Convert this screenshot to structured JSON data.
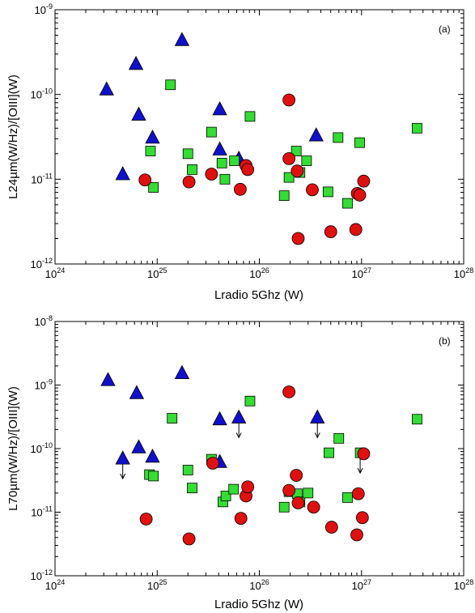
{
  "chart_data": [
    {
      "type": "scatter",
      "panel_label": "(a)",
      "xlabel": "Lradio 5Ghz (W)",
      "ylabel": "L24µm(W/Hz)/[OIII](W)",
      "x_scale": "log",
      "y_scale": "log",
      "xlim": [
        1e+24,
        1e+28
      ],
      "ylim": [
        1e-12,
        1e-09
      ],
      "x_ticks": [
        "10^24",
        "10^25",
        "10^26",
        "10^27",
        "10^28"
      ],
      "y_ticks": [
        "10^-12",
        "10^-11",
        "10^-10",
        "10^-9"
      ],
      "series": [
        {
          "marker": "triangle",
          "color": "#1010cc",
          "points": [
            {
              "x": 3.2e+24,
              "y": 1.15e-10
            },
            {
              "x": 4.6e+24,
              "y": 1.15e-11
            },
            {
              "x": 6.2e+24,
              "y": 2.3e-10
            },
            {
              "x": 6.6e+24,
              "y": 5.8e-11
            },
            {
              "x": 9e+24,
              "y": 3.1e-11
            },
            {
              "x": 1.75e+25,
              "y": 4.4e-10
            },
            {
              "x": 4.1e+25,
              "y": 6.7e-11
            },
            {
              "x": 4.1e+25,
              "y": 2.25e-11
            },
            {
              "x": 6.3e+25,
              "y": 1.75e-11
            },
            {
              "x": 3.6e+26,
              "y": 3.3e-11
            }
          ]
        },
        {
          "marker": "square",
          "color": "#33dd33",
          "points": [
            {
              "x": 8.6e+24,
              "y": 2.15e-11
            },
            {
              "x": 9.2e+24,
              "y": 8e-12
            },
            {
              "x": 1.35e+25,
              "y": 1.3e-10
            },
            {
              "x": 2e+25,
              "y": 2e-11
            },
            {
              "x": 2.2e+25,
              "y": 1.3e-11
            },
            {
              "x": 3.4e+25,
              "y": 3.6e-11
            },
            {
              "x": 4.3e+25,
              "y": 1.55e-11
            },
            {
              "x": 4.6e+25,
              "y": 1e-11
            },
            {
              "x": 5.7e+25,
              "y": 1.65e-11
            },
            {
              "x": 8.1e+25,
              "y": 5.5e-11
            },
            {
              "x": 1.75e+26,
              "y": 6.4e-12
            },
            {
              "x": 1.95e+26,
              "y": 1.05e-11
            },
            {
              "x": 2.3e+26,
              "y": 2.15e-11
            },
            {
              "x": 2.5e+26,
              "y": 1.2e-11
            },
            {
              "x": 2.9e+26,
              "y": 1.65e-11
            },
            {
              "x": 4.7e+26,
              "y": 7.1e-12
            },
            {
              "x": 5.9e+26,
              "y": 3.1e-11
            },
            {
              "x": 7.3e+26,
              "y": 5.2e-12
            },
            {
              "x": 9.6e+26,
              "y": 2.7e-11
            },
            {
              "x": 3.5e+27,
              "y": 4e-11
            }
          ]
        },
        {
          "marker": "circle",
          "color": "#e01010",
          "points": [
            {
              "x": 7.6e+24,
              "y": 9.8e-12
            },
            {
              "x": 2.05e+25,
              "y": 9.3e-12
            },
            {
              "x": 3.4e+25,
              "y": 1.15e-11
            },
            {
              "x": 6.5e+25,
              "y": 7.6e-12
            },
            {
              "x": 7.4e+25,
              "y": 1.45e-11
            },
            {
              "x": 7.7e+25,
              "y": 1.3e-11
            },
            {
              "x": 1.95e+26,
              "y": 8.6e-11
            },
            {
              "x": 1.95e+26,
              "y": 1.75e-11
            },
            {
              "x": 2.35e+26,
              "y": 1.25e-11
            },
            {
              "x": 2.4e+26,
              "y": 2e-12
            },
            {
              "x": 3.3e+26,
              "y": 7.5e-12
            },
            {
              "x": 5e+26,
              "y": 2.4e-12
            },
            {
              "x": 8.8e+26,
              "y": 2.55e-12
            },
            {
              "x": 9.1e+26,
              "y": 6.8e-12
            },
            {
              "x": 9.6e+26,
              "y": 6.5e-12
            },
            {
              "x": 1.05e+27,
              "y": 9.5e-12
            }
          ]
        }
      ]
    },
    {
      "type": "scatter",
      "panel_label": "(b)",
      "xlabel": "Lradio 5Ghz (W)",
      "ylabel": "L70µm(W/Hz)/[OIII](W)",
      "x_scale": "log",
      "y_scale": "log",
      "xlim": [
        1e+24,
        1e+28
      ],
      "ylim": [
        1e-12,
        1e-08
      ],
      "x_ticks": [
        "10^24",
        "10^25",
        "10^26",
        "10^27",
        "10^28"
      ],
      "y_ticks": [
        "10^-12",
        "10^-11",
        "10^-10",
        "10^-9",
        "10^-8"
      ],
      "series": [
        {
          "marker": "triangle",
          "color": "#1010cc",
          "points": [
            {
              "x": 3.3e+24,
              "y": 1.2e-09
            },
            {
              "x": 4.6e+24,
              "y": 7e-11,
              "upper_limit": true
            },
            {
              "x": 6.3e+24,
              "y": 7.5e-10
            },
            {
              "x": 6.6e+24,
              "y": 1.05e-10
            },
            {
              "x": 9e+24,
              "y": 7.5e-11
            },
            {
              "x": 1.75e+25,
              "y": 1.55e-09
            },
            {
              "x": 4.1e+25,
              "y": 2.9e-10
            },
            {
              "x": 4.1e+25,
              "y": 6.2e-11
            },
            {
              "x": 6.3e+25,
              "y": 3.1e-10,
              "upper_limit": true
            },
            {
              "x": 3.7e+26,
              "y": 3.1e-10,
              "upper_limit": true
            }
          ]
        },
        {
          "marker": "square",
          "color": "#33dd33",
          "points": [
            {
              "x": 8.4e+24,
              "y": 3.9e-11
            },
            {
              "x": 9.2e+24,
              "y": 3.7e-11
            },
            {
              "x": 1.4e+25,
              "y": 3e-10
            },
            {
              "x": 2e+25,
              "y": 4.6e-11
            },
            {
              "x": 2.2e+25,
              "y": 2.4e-11
            },
            {
              "x": 3.4e+25,
              "y": 6.8e-11
            },
            {
              "x": 4.4e+25,
              "y": 1.45e-11
            },
            {
              "x": 4.7e+25,
              "y": 1.8e-11
            },
            {
              "x": 5.6e+25,
              "y": 2.3e-11
            },
            {
              "x": 8.1e+25,
              "y": 5.6e-10
            },
            {
              "x": 1.75e+26,
              "y": 1.2e-11
            },
            {
              "x": 1.95e+26,
              "y": 2.1e-11
            },
            {
              "x": 2.35e+26,
              "y": 1.95e-11
            },
            {
              "x": 2.5e+26,
              "y": 1.45e-11
            },
            {
              "x": 3e+26,
              "y": 2e-11
            },
            {
              "x": 4.8e+26,
              "y": 8.6e-11
            },
            {
              "x": 6e+26,
              "y": 1.45e-10
            },
            {
              "x": 7.3e+26,
              "y": 1.7e-11
            },
            {
              "x": 9.7e+26,
              "y": 8.6e-11,
              "upper_limit": true
            },
            {
              "x": 3.5e+27,
              "y": 2.9e-10
            }
          ]
        },
        {
          "marker": "circle",
          "color": "#e01010",
          "points": [
            {
              "x": 7.8e+24,
              "y": 7.8e-12
            },
            {
              "x": 2.05e+25,
              "y": 3.8e-12
            },
            {
              "x": 3.5e+25,
              "y": 5.9e-11
            },
            {
              "x": 6.6e+25,
              "y": 8e-12
            },
            {
              "x": 7.4e+25,
              "y": 1.8e-11
            },
            {
              "x": 7.7e+25,
              "y": 2.5e-11
            },
            {
              "x": 1.95e+26,
              "y": 7.8e-10
            },
            {
              "x": 1.95e+26,
              "y": 2.2e-11
            },
            {
              "x": 2.3e+26,
              "y": 3.8e-11
            },
            {
              "x": 2.4e+26,
              "y": 1.4e-11
            },
            {
              "x": 3.4e+26,
              "y": 1.2e-11
            },
            {
              "x": 5.1e+26,
              "y": 5.8e-12
            },
            {
              "x": 9e+26,
              "y": 4.4e-12
            },
            {
              "x": 9.3e+26,
              "y": 1.95e-11
            },
            {
              "x": 1.02e+27,
              "y": 8.2e-12
            },
            {
              "x": 1.05e+27,
              "y": 8.3e-11
            }
          ]
        }
      ]
    }
  ]
}
